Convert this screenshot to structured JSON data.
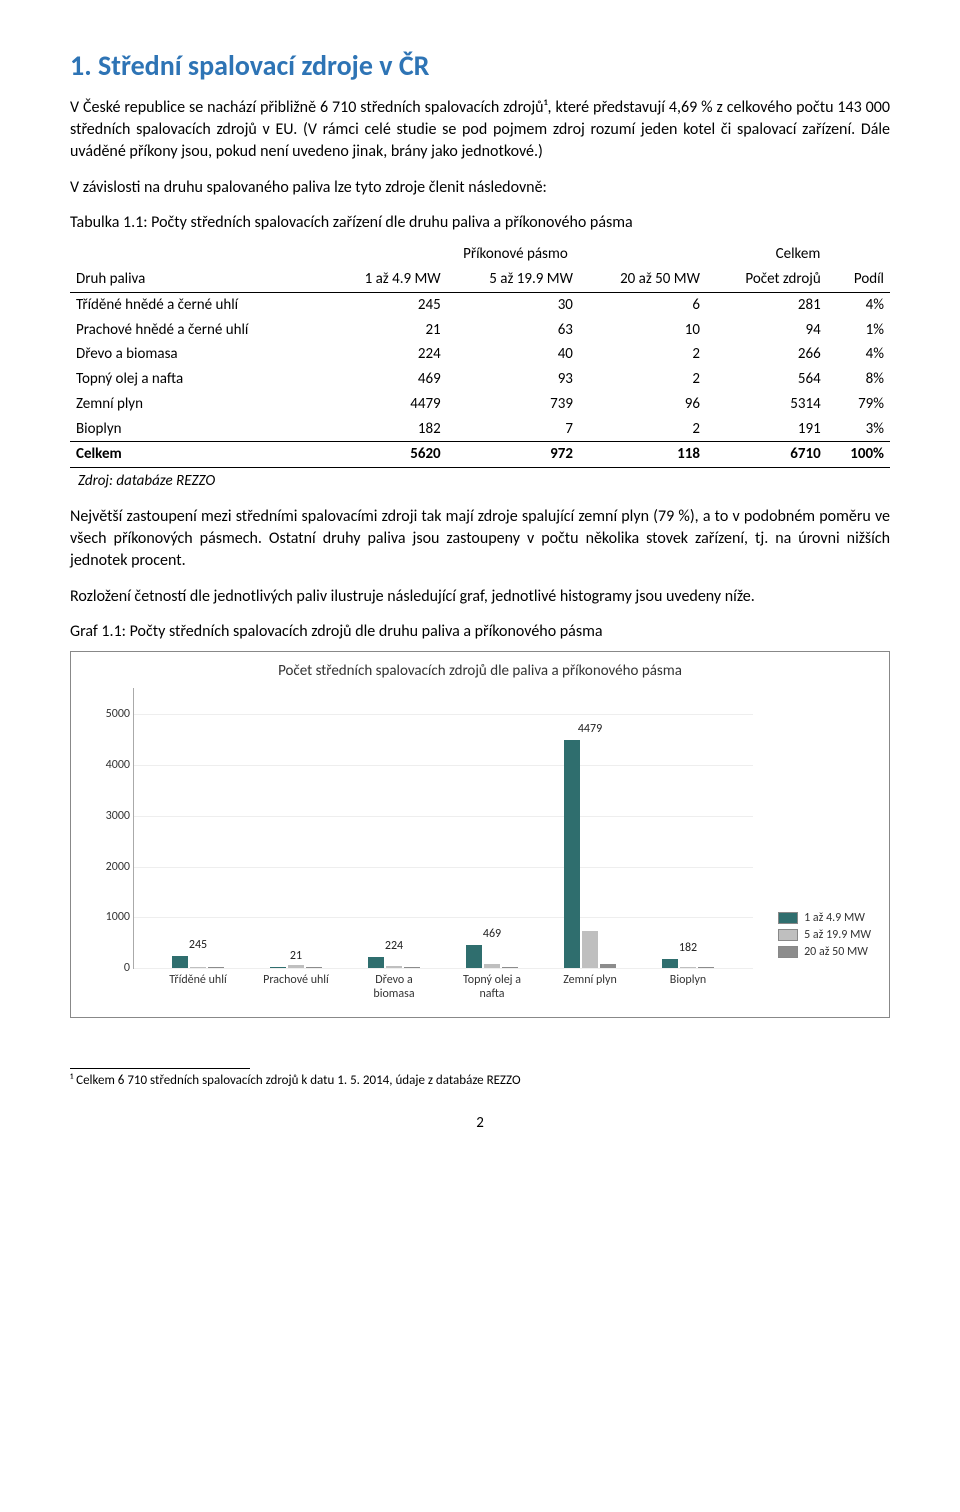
{
  "heading": "1. Střední spalovací zdroje v ČR",
  "para1": "V České republice se nachází přibližně 6 710 středních spalovacích zdrojů¹, které představují 4,69 % z celkového počtu 143 000 středních spalovacích zdrojů v EU. (V rámci celé studie se pod pojmem zdroj rozumí jeden kotel či spalovací zařízení. Dále uváděné příkony jsou, pokud není uvedeno jinak, brány jako jednotkové.)",
  "para2": "V závislosti na druhu spalovaného paliva lze tyto zdroje členit následovně:",
  "tableCaption": "Tabulka 1.1: Počty středních spalovacích zařízení dle druhu paliva a příkonového pásma",
  "table": {
    "groupHeaders": [
      "Příkonové pásmo",
      "Celkem"
    ],
    "columns": [
      "Druh paliva",
      "1 až 4.9 MW",
      "5 až 19.9 MW",
      "20 až 50 MW",
      "Počet zdrojů",
      "Podíl"
    ],
    "rows": [
      [
        "Tříděné hnědé a černé uhlí",
        "245",
        "30",
        "6",
        "281",
        "4%"
      ],
      [
        "Prachové hnědé a černé uhlí",
        "21",
        "63",
        "10",
        "94",
        "1%"
      ],
      [
        "Dřevo a biomasa",
        "224",
        "40",
        "2",
        "266",
        "4%"
      ],
      [
        "Topný olej a nafta",
        "469",
        "93",
        "2",
        "564",
        "8%"
      ],
      [
        "Zemní plyn",
        "4479",
        "739",
        "96",
        "5314",
        "79%"
      ],
      [
        "Bioplyn",
        "182",
        "7",
        "2",
        "191",
        "3%"
      ]
    ],
    "total": [
      "Celkem",
      "5620",
      "972",
      "118",
      "6710",
      "100%"
    ]
  },
  "source": "Zdroj: databáze REZZO",
  "para3": "Největší zastoupení mezi středními spalovacími zdroji tak mají zdroje spalující zemní plyn (79 %), a to v podobném poměru ve všech příkonových pásmech. Ostatní druhy paliva jsou zastoupeny v počtu několika stovek zařízení, tj. na úrovni nižších jednotek procent.",
  "para4": "Rozložení četností dle jednotlivých paliv ilustruje následující graf, jednotlivé histogramy jsou uvedeny níže.",
  "chartCaption": "Graf 1.1: Počty středních spalovacích zdrojů dle druhu paliva a příkonového pásma",
  "chart": {
    "title": "Počet středních spalovacích zdrojů dle paliva a příkonového pásma",
    "ymax": 5500,
    "yticks": [
      0,
      1000,
      2000,
      3000,
      4000,
      5000
    ],
    "categories": [
      "Tříděné uhlí",
      "Prachové uhlí",
      "Dřevo a\nbiomasa",
      "Topný olej a\nnafta",
      "Zemní plyn",
      "Bioplyn"
    ],
    "series": [
      {
        "name": "1 až 4.9 MW",
        "color": "#2f6e6e",
        "values": [
          245,
          21,
          224,
          469,
          4479,
          182
        ],
        "showLabels": [
          245,
          21,
          224,
          469,
          4479,
          182
        ]
      },
      {
        "name": "5 až 19.9 MW",
        "color": "#bfbfbf",
        "values": [
          30,
          63,
          40,
          93,
          739,
          7
        ]
      },
      {
        "name": "20 až 50 MW",
        "color": "#8c8c8c",
        "values": [
          6,
          10,
          2,
          2,
          96,
          2
        ]
      }
    ],
    "barWidth": 16,
    "groupGap": 98,
    "firstGroupX": 38,
    "axisColor": "#aaaaaa",
    "gridColor": "#eeeeee",
    "bg": "#ffffff",
    "labelFont": 12
  },
  "footnote": "¹ Celkem 6 710 středních spalovacích zdrojů k datu 1. 5. 2014, údaje z databáze REZZO",
  "pageNumber": "2"
}
